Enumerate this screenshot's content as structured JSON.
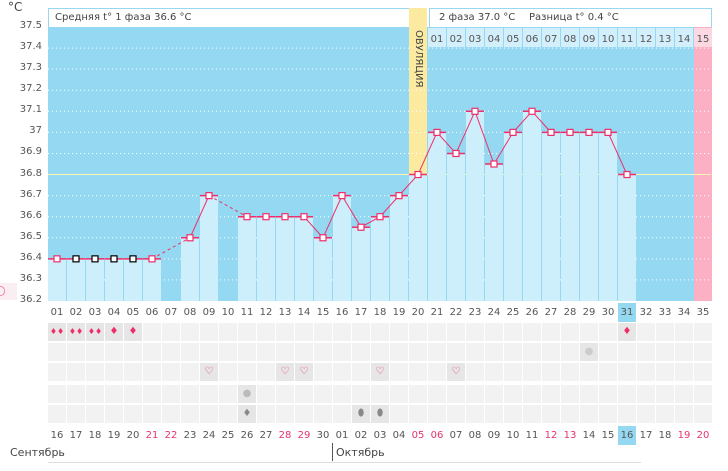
{
  "unit": "°C",
  "header": {
    "phase1": "Средняя t° 1 фаза 36.6 °C",
    "phase2": "2 фаза 37.0 °C",
    "diff": "Разница t° 0.4 °C",
    "ovulation_label": "ОВУЛЯЦИЯ"
  },
  "colors": {
    "bg": "#95d8f2",
    "bar": "#cdeefb",
    "line": "#ee2f6a",
    "ovulation": "#fbeaa0",
    "pink": "#fbb0c4"
  },
  "chart_data": {
    "type": "line",
    "title": "",
    "ylabel": "°C",
    "ylim": [
      36.2,
      37.5
    ],
    "yticks": [
      "37.5",
      "37.4",
      "37.3",
      "37.2",
      "37.1",
      "37",
      "36.9",
      "36.8",
      "36.7",
      "36.6",
      "36.5",
      "36.4",
      "36.3",
      "36.2"
    ],
    "cycle_days": [
      "01",
      "02",
      "03",
      "04",
      "05",
      "06",
      "07",
      "08",
      "09",
      "10",
      "11",
      "12",
      "13",
      "14",
      "15",
      "16",
      "17",
      "18",
      "19",
      "20",
      "21",
      "22",
      "23",
      "24",
      "25",
      "26",
      "27",
      "28",
      "29",
      "30",
      "31",
      "32",
      "33",
      "34",
      "35"
    ],
    "temps": [
      36.4,
      36.4,
      36.4,
      36.4,
      36.4,
      36.4,
      null,
      36.5,
      36.7,
      null,
      36.6,
      36.6,
      36.6,
      36.6,
      36.5,
      36.7,
      36.55,
      36.6,
      36.7,
      36.8,
      37.0,
      36.9,
      37.1,
      36.85,
      37.0,
      37.1,
      37.0,
      37.0,
      37.0,
      37.0,
      36.8
    ],
    "excluded_days": [
      2,
      3,
      4,
      5
    ],
    "ovulation_day": 20,
    "coverline": 36.8,
    "phase2_days": [
      "01",
      "02",
      "03",
      "04",
      "05",
      "06",
      "07",
      "08",
      "09",
      "10",
      "11",
      "12",
      "13",
      "14",
      "15"
    ],
    "current_day": 31
  },
  "calendar": {
    "dates": [
      "16",
      "17",
      "18",
      "19",
      "20",
      "21",
      "22",
      "23",
      "24",
      "25",
      "26",
      "27",
      "28",
      "29",
      "30",
      "01",
      "02",
      "03",
      "04",
      "05",
      "06",
      "07",
      "08",
      "09",
      "10",
      "11",
      "12",
      "13",
      "14",
      "15",
      "16",
      "17",
      "18",
      "19",
      "20"
    ],
    "weekend_idx": [
      5,
      6,
      12,
      13,
      19,
      20,
      26,
      27,
      33,
      34
    ],
    "today_idx": 30,
    "months": [
      "Сентябрь",
      "Октябрь"
    ]
  },
  "symptoms": {
    "bleeding_heavy": [
      1,
      2,
      3
    ],
    "bleeding_light": [
      4,
      5,
      31
    ],
    "test": [
      29
    ],
    "intercourse": [
      9,
      13,
      14,
      18,
      22
    ],
    "pill": [
      11
    ],
    "discharge_light": [
      11
    ],
    "discharge_heavy": [
      17,
      18
    ],
    "moon_day": 4
  }
}
